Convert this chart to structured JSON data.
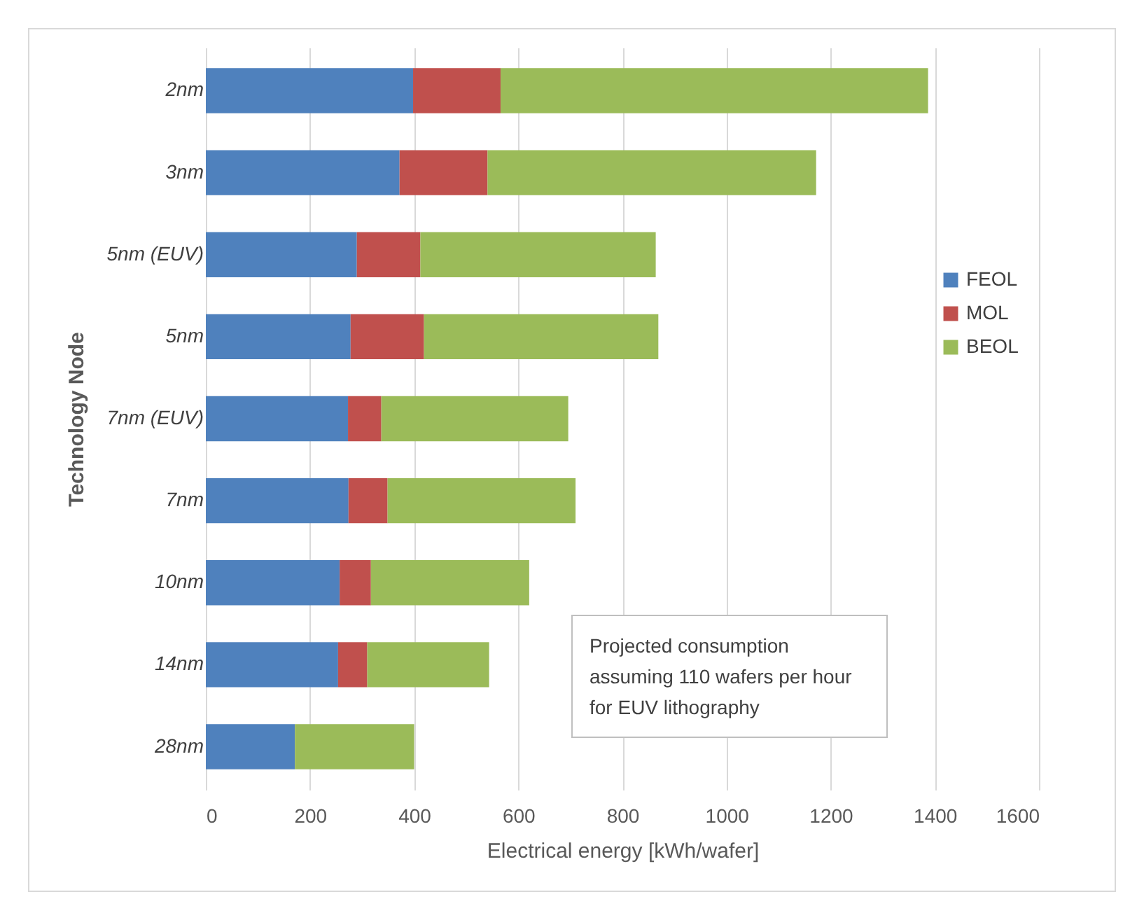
{
  "chart_data": {
    "type": "bar",
    "orientation": "horizontal",
    "stacked": true,
    "ylabel": "Technology Node",
    "xlabel": "Electrical energy [kWh/wafer]",
    "categories": [
      "2nm",
      "3nm",
      "5nm (EUV)",
      "5nm",
      "7nm (EUV)",
      "7nm",
      "10nm",
      "14nm",
      "28nm"
    ],
    "series": [
      {
        "name": "FEOL",
        "color": "#4f81bd",
        "values": [
          398,
          372,
          290,
          278,
          273,
          274,
          257,
          254,
          171
        ]
      },
      {
        "name": "MOL",
        "color": "#c0504d",
        "values": [
          168,
          169,
          122,
          141,
          64,
          75,
          60,
          56,
          0
        ]
      },
      {
        "name": "BEOL",
        "color": "#9bbb59",
        "values": [
          821,
          631,
          452,
          450,
          359,
          361,
          304,
          234,
          229
        ]
      }
    ],
    "xlim": [
      0,
      1600
    ],
    "xticks": [
      0,
      200,
      400,
      600,
      800,
      1000,
      1200,
      1400,
      1600
    ],
    "grid": "x",
    "legend": "right",
    "annotations": [
      "Projected consumption assuming 110 wafers per hour for EUV lithography"
    ]
  }
}
